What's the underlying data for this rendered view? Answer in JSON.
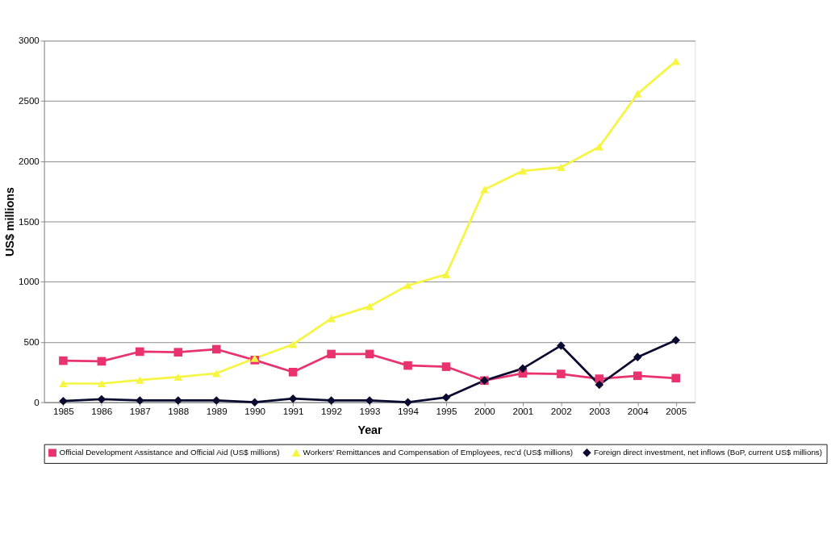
{
  "chart_data": {
    "type": "line",
    "xlabel": "Year",
    "ylabel": "US$ millions",
    "categories": [
      "1985",
      "1986",
      "1987",
      "1988",
      "1989",
      "1990",
      "1991",
      "1992",
      "1993",
      "1994",
      "1995",
      "2000",
      "2001",
      "2002",
      "2003",
      "2004",
      "2005"
    ],
    "ylim": [
      0,
      3000
    ],
    "yticks": [
      0,
      500,
      1000,
      1500,
      2000,
      2500,
      3000
    ],
    "grid": "y",
    "legend": "bottom",
    "series": [
      {
        "name": "Official Development Assistance  and Official Aid (US$ millions)",
        "color": "#e8336f",
        "marker": "square",
        "values": [
          345,
          340,
          420,
          415,
          440,
          350,
          250,
          400,
          400,
          305,
          295,
          180,
          240,
          235,
          195,
          220,
          200
        ]
      },
      {
        "name": "Workers' Remittances and Compensation of Employees, rec'd (US$ millions)",
        "color": "#f5f542",
        "marker": "triangle",
        "values": [
          155,
          155,
          185,
          210,
          240,
          365,
          480,
          695,
          795,
          970,
          1060,
          1765,
          1920,
          1950,
          2120,
          2560,
          2830
        ]
      },
      {
        "name": "Foreign direct investment, net inflows (BoP, current US$ millions)",
        "color": "#0a0a30",
        "marker": "diamond",
        "values": [
          10,
          25,
          15,
          15,
          15,
          0,
          30,
          15,
          15,
          0,
          40,
          180,
          280,
          470,
          145,
          375,
          515
        ]
      }
    ]
  }
}
